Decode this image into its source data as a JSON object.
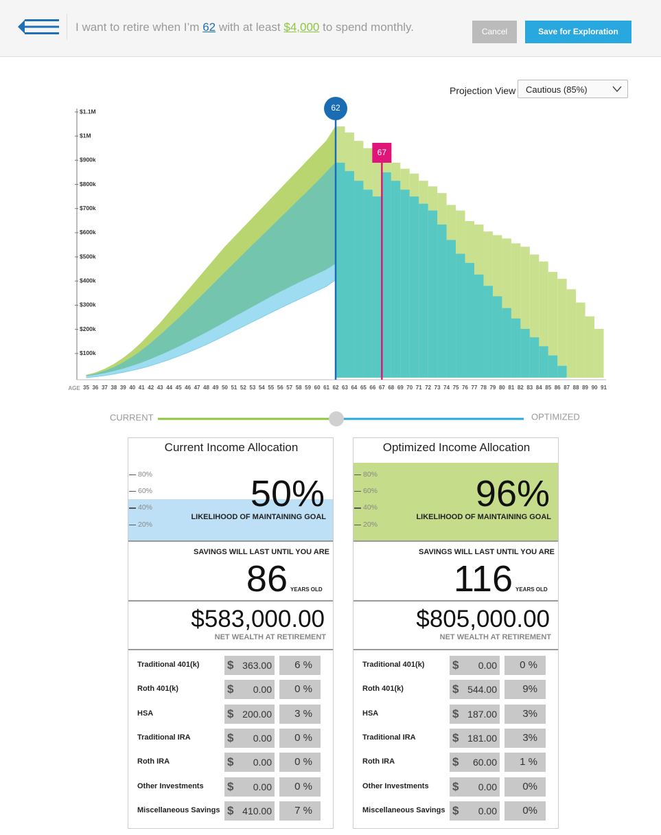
{
  "header": {
    "prefix": "I want to retire when I’m",
    "retire_age": "62",
    "middle": "with at least",
    "monthly_goal": "$4,000",
    "suffix": "to spend monthly.",
    "cancel": "Cancel",
    "save": "Save for Exploration"
  },
  "projection": {
    "label": "Projection View",
    "selected": "Cautious (85%)"
  },
  "chart_data": {
    "type": "area",
    "x_label": "AGE",
    "x": [
      35,
      36,
      37,
      38,
      39,
      40,
      41,
      42,
      43,
      44,
      45,
      46,
      47,
      48,
      49,
      50,
      51,
      52,
      53,
      54,
      55,
      56,
      57,
      58,
      59,
      60,
      61,
      62,
      63,
      64,
      65,
      66,
      67,
      68,
      69,
      70,
      71,
      72,
      73,
      74,
      75,
      76,
      77,
      78,
      79,
      80,
      81,
      82,
      83,
      84,
      85,
      86,
      87,
      88,
      89,
      90,
      91
    ],
    "xlim": [
      34,
      91.2
    ],
    "ylim": [
      0,
      1100
    ],
    "yticks": [
      {
        "value": 100,
        "label": "$100k"
      },
      {
        "value": 200,
        "label": "$200k"
      },
      {
        "value": 300,
        "label": "$300k"
      },
      {
        "value": 400,
        "label": "$400k"
      },
      {
        "value": 500,
        "label": "$500k"
      },
      {
        "value": 600,
        "label": "$600k"
      },
      {
        "value": 700,
        "label": "$700k"
      },
      {
        "value": 800,
        "label": "$800k"
      },
      {
        "value": 900,
        "label": "$900k"
      },
      {
        "value": 1000,
        "label": "$1M"
      },
      {
        "value": 1100,
        "label": "$1.1M"
      }
    ],
    "series": [
      {
        "kind": "area",
        "color": "#b8d56f",
        "values": [
          10,
          20,
          35,
          55,
          80,
          110,
          145,
          185,
          225,
          270,
          315,
          360,
          405,
          450,
          495,
          540,
          580,
          620,
          660,
          700,
          740,
          780,
          820,
          860,
          900,
          940,
          980,
          1040,
          null,
          null,
          null,
          null,
          null,
          null,
          null,
          null,
          null,
          null,
          null,
          null,
          null,
          null,
          null,
          null,
          null,
          null,
          null,
          null,
          null,
          null,
          null,
          null,
          null,
          null,
          null,
          null,
          null
        ]
      },
      {
        "kind": "area",
        "color": "#74c5ae",
        "values": [
          8,
          15,
          27,
          42,
          62,
          85,
          112,
          142,
          175,
          210,
          245,
          282,
          320,
          358,
          396,
          435,
          472,
          510,
          548,
          585,
          622,
          660,
          697,
          735,
          772,
          810,
          850,
          890,
          null,
          null,
          null,
          null,
          null,
          null,
          null,
          null,
          null,
          null,
          null,
          null,
          null,
          null,
          null,
          null,
          null,
          null,
          null,
          null,
          null,
          null,
          null,
          null,
          null,
          null,
          null,
          null,
          null
        ]
      },
      {
        "kind": "area",
        "color": "#9edcf2",
        "values": [
          5,
          10,
          17,
          26,
          36,
          48,
          61,
          76,
          92,
          109,
          127,
          146,
          166,
          186,
          207,
          228,
          250,
          271,
          292,
          313,
          334,
          354,
          373,
          392,
          410,
          428,
          446,
          470,
          null,
          null,
          null,
          null,
          null,
          null,
          null,
          null,
          null,
          null,
          null,
          null,
          null,
          null,
          null,
          null,
          null,
          null,
          null,
          null,
          null,
          null,
          null,
          null,
          null,
          null,
          null,
          null,
          null
        ]
      },
      {
        "kind": "area",
        "color": "#7fcde9",
        "values": [
          0,
          4,
          9,
          15,
          22,
          30,
          39,
          50,
          62,
          75,
          89,
          104,
          120,
          137,
          155,
          174,
          193,
          212,
          231,
          250,
          269,
          288,
          306,
          324,
          342,
          360,
          378,
          405,
          null,
          null,
          null,
          null,
          null,
          null,
          null,
          null,
          null,
          null,
          null,
          null,
          null,
          null,
          null,
          null,
          null,
          null,
          null,
          null,
          null,
          null,
          null,
          null,
          null,
          null,
          null,
          null,
          null
        ]
      },
      {
        "kind": "bar",
        "color": "#c9e08f",
        "values": [
          null,
          null,
          null,
          null,
          null,
          null,
          null,
          null,
          null,
          null,
          null,
          null,
          null,
          null,
          null,
          null,
          null,
          null,
          null,
          null,
          null,
          null,
          null,
          null,
          null,
          null,
          null,
          1040,
          1015,
          980,
          950,
          920,
          908,
          890,
          865,
          845,
          815,
          792,
          764,
          715,
          692,
          648,
          634,
          605,
          590,
          576,
          556,
          542,
          510,
          481,
          438,
          409,
          366,
          311,
          254,
          202,
          null
        ]
      },
      {
        "kind": "bar",
        "color": "#58c8c3",
        "values": [
          null,
          null,
          null,
          null,
          null,
          null,
          null,
          null,
          null,
          null,
          null,
          null,
          null,
          null,
          null,
          null,
          null,
          null,
          null,
          null,
          null,
          null,
          null,
          null,
          null,
          null,
          null,
          890,
          855,
          815,
          778,
          750,
          850,
          815,
          778,
          750,
          720,
          692,
          634,
          570,
          513,
          475,
          427,
          380,
          337,
          288,
          245,
          202,
          167,
          130,
          92,
          49,
          null,
          null,
          null,
          null,
          null
        ]
      }
    ],
    "markers": [
      {
        "value": 62,
        "color": "#1a6db3"
      },
      {
        "value": 67,
        "color": "#e0157a"
      }
    ]
  },
  "slider": {
    "left": "CURRENT",
    "right": "OPTIMIZED"
  },
  "panels": [
    {
      "title": "Current Income Allocation",
      "fill": "#bde0f6",
      "likelihood": {
        "value": 50,
        "label": "50%"
      },
      "likelihood_caption": "LIKELIHOOD OF MAINTAINING GOAL",
      "scale": [
        {
          "value": 80,
          "label": "80%"
        },
        {
          "value": 60,
          "label": "60%"
        },
        {
          "value": 40,
          "label": "40%"
        },
        {
          "value": 20,
          "label": "20%"
        }
      ],
      "savings_caption": "SAVINGS WILL LAST UNTIL YOU ARE",
      "last_age": "86",
      "age_unit": "YEARS OLD",
      "net_wealth": "$583,000.00",
      "net_wealth_caption": "NET WEALTH AT RETIREMENT",
      "currency": "$",
      "rows": [
        {
          "name": "Traditional 401(k)",
          "amount": "363.00",
          "percent": "6 %"
        },
        {
          "name": "Roth 401(k)",
          "amount": "0.00",
          "percent": "0 %"
        },
        {
          "name": "HSA",
          "amount": "200.00",
          "percent": "3 %"
        },
        {
          "name": "Traditional IRA",
          "amount": "0.00",
          "percent": "0 %"
        },
        {
          "name": "Roth IRA",
          "amount": "0.00",
          "percent": "0 %"
        },
        {
          "name": "Other Investments",
          "amount": "0.00",
          "percent": "0 %"
        },
        {
          "name": "Miscellaneous Savings",
          "amount": "410.00",
          "percent": "7 %"
        }
      ]
    },
    {
      "title": "Optimized Income Allocation",
      "fill": "#c5dc8a",
      "likelihood": {
        "value": 96,
        "label": "96%"
      },
      "likelihood_caption": "LIKELIHOOD OF MAINTAINING GOAL",
      "scale": [
        {
          "value": 80,
          "label": "80%"
        },
        {
          "value": 60,
          "label": "60%"
        },
        {
          "value": 40,
          "label": "40%"
        },
        {
          "value": 20,
          "label": "20%"
        }
      ],
      "savings_caption": "SAVINGS WILL LAST UNTIL YOU ARE",
      "last_age": "116",
      "age_unit": "YEARS OLD",
      "net_wealth": "$805,000.00",
      "net_wealth_caption": "NET WEALTH AT RETIREMENT",
      "currency": "$",
      "rows": [
        {
          "name": "Traditional 401(k)",
          "amount": "0.00",
          "percent": "0 %"
        },
        {
          "name": "Roth 401(k)",
          "amount": "544.00",
          "percent": "9%"
        },
        {
          "name": "HSA",
          "amount": "187.00",
          "percent": "3%"
        },
        {
          "name": "Traditional IRA",
          "amount": "181.00",
          "percent": "3%"
        },
        {
          "name": "Roth IRA",
          "amount": "60.00",
          "percent": "1 %"
        },
        {
          "name": "Other Investments",
          "amount": "0.00",
          "percent": "0%"
        },
        {
          "name": "Miscellaneous Savings",
          "amount": "0.00",
          "percent": "0%"
        }
      ]
    }
  ]
}
